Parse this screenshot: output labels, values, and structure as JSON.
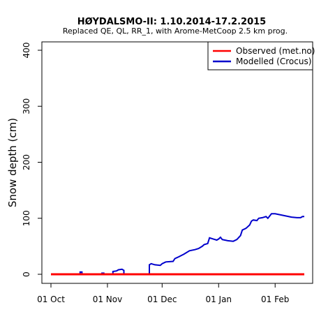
{
  "chart_data": {
    "type": "line",
    "title": "HØYDALSMO-II: 1.10.2014-17.2.2015",
    "subtitle": "Replaced QE, QL, RR_1,  with Arome-MetCoop 2.5 km prog.",
    "xlabel": "",
    "ylabel": "Snow depth (cm)",
    "xlim": [
      "2014-10-01",
      "2015-02-17"
    ],
    "ylim": [
      0,
      400
    ],
    "x_ticks": [
      {
        "date": "2014-10-01",
        "label": "01 Oct"
      },
      {
        "date": "2014-11-01",
        "label": "01 Nov"
      },
      {
        "date": "2014-12-01",
        "label": "01 Dec"
      },
      {
        "date": "2015-01-01",
        "label": "01 Jan"
      },
      {
        "date": "2015-02-01",
        "label": "01 Feb"
      }
    ],
    "y_ticks": [
      0,
      100,
      200,
      300,
      400
    ],
    "grid": false,
    "legend_position": "top-right",
    "series": [
      {
        "name": "Observed (met.no)",
        "color": "#ff0000",
        "points": [
          [
            "2014-10-01",
            0
          ],
          [
            "2015-02-17",
            0
          ]
        ]
      },
      {
        "name": "Modelled (Crocus)",
        "color": "#0000cc",
        "points": [
          [
            "2014-10-01",
            0
          ],
          [
            "2014-10-17",
            0
          ],
          [
            "2014-10-17",
            4
          ],
          [
            "2014-10-18",
            4
          ],
          [
            "2014-10-18",
            0
          ],
          [
            "2014-10-29",
            0
          ],
          [
            "2014-10-29",
            2
          ],
          [
            "2014-10-30",
            2
          ],
          [
            "2014-10-30",
            0
          ],
          [
            "2014-11-04",
            0
          ],
          [
            "2014-11-04",
            5
          ],
          [
            "2014-11-06",
            6
          ],
          [
            "2014-11-07",
            8
          ],
          [
            "2014-11-09",
            9
          ],
          [
            "2014-11-10",
            7
          ],
          [
            "2014-11-10",
            1
          ],
          [
            "2014-11-11",
            0
          ],
          [
            "2014-11-24",
            0
          ],
          [
            "2014-11-24",
            17
          ],
          [
            "2014-11-25",
            19
          ],
          [
            "2014-11-27",
            17
          ],
          [
            "2014-11-30",
            16
          ],
          [
            "2014-12-01",
            19
          ],
          [
            "2014-12-03",
            22
          ],
          [
            "2014-12-07",
            23
          ],
          [
            "2014-12-08",
            28
          ],
          [
            "2014-12-10",
            31
          ],
          [
            "2014-12-13",
            36
          ],
          [
            "2014-12-16",
            42
          ],
          [
            "2014-12-19",
            44
          ],
          [
            "2014-12-21",
            46
          ],
          [
            "2014-12-23",
            50
          ],
          [
            "2014-12-24",
            53
          ],
          [
            "2014-12-26",
            55
          ],
          [
            "2014-12-27",
            65
          ],
          [
            "2014-12-29",
            63
          ],
          [
            "2014-12-31",
            61
          ],
          [
            "2015-01-01",
            63
          ],
          [
            "2015-01-02",
            66
          ],
          [
            "2015-01-03",
            62
          ],
          [
            "2015-01-06",
            60
          ],
          [
            "2015-01-09",
            59
          ],
          [
            "2015-01-11",
            62
          ],
          [
            "2015-01-13",
            69
          ],
          [
            "2015-01-14",
            79
          ],
          [
            "2015-01-16",
            82
          ],
          [
            "2015-01-18",
            88
          ],
          [
            "2015-01-19",
            95
          ],
          [
            "2015-01-20",
            97
          ],
          [
            "2015-01-22",
            96
          ],
          [
            "2015-01-23",
            100
          ],
          [
            "2015-01-25",
            101
          ],
          [
            "2015-01-27",
            103
          ],
          [
            "2015-01-28",
            100
          ],
          [
            "2015-01-30",
            108
          ],
          [
            "2015-02-01",
            108
          ],
          [
            "2015-02-04",
            106
          ],
          [
            "2015-02-07",
            104
          ],
          [
            "2015-02-10",
            102
          ],
          [
            "2015-02-13",
            101
          ],
          [
            "2015-02-15",
            101
          ],
          [
            "2015-02-16",
            103
          ],
          [
            "2015-02-17",
            103
          ]
        ]
      }
    ]
  }
}
